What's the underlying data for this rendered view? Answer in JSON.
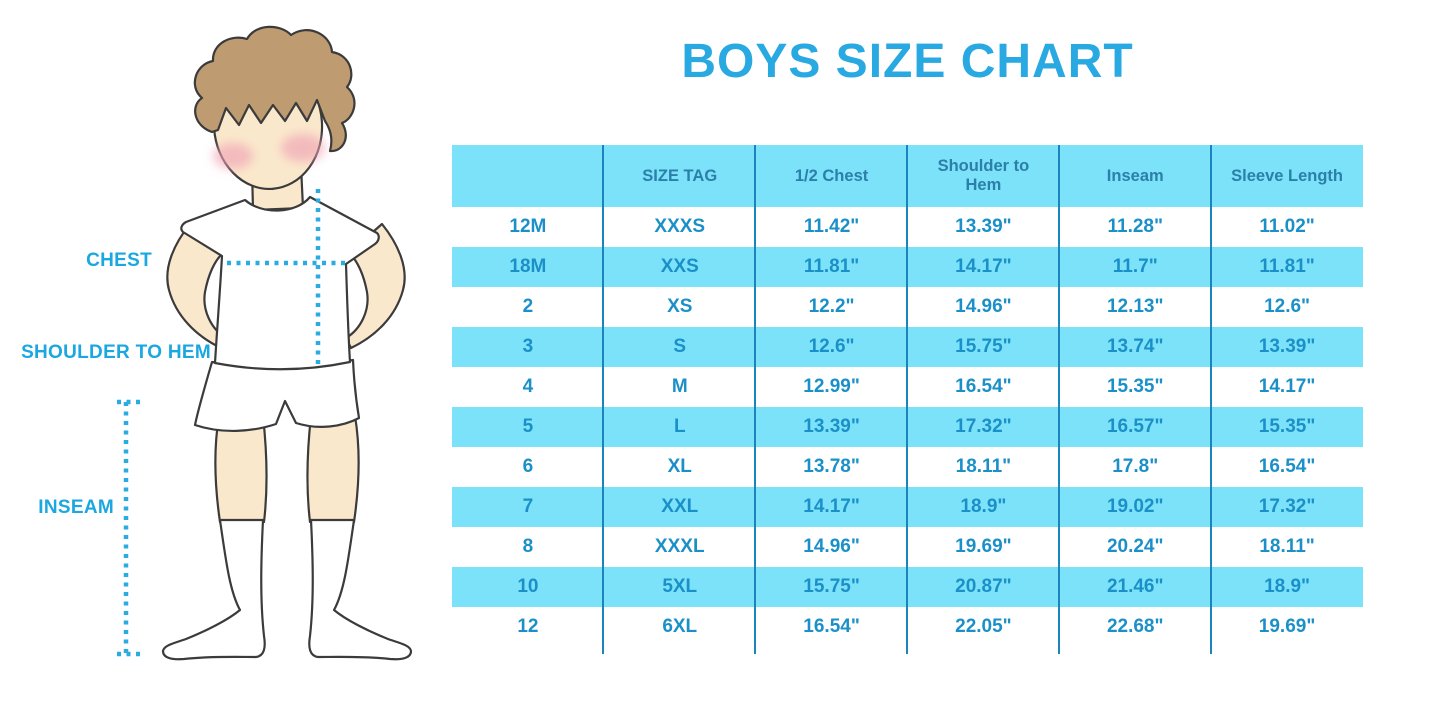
{
  "title": "BOYS SIZE CHART",
  "illustration": {
    "description": "cartoon boy in white t-shirt, shorts and knee socks with dotted measurement lines",
    "labels": {
      "chest": "CHEST",
      "shoulder_to_hem": "SHOULDER TO HEM",
      "inseam": "INSEAM"
    }
  },
  "table": {
    "columns": [
      "",
      "SIZE TAG",
      "1/2 Chest",
      "Shoulder to Hem",
      "Inseam",
      "Sleeve Length"
    ],
    "rows": [
      [
        "12M",
        "XXXS",
        "11.42\"",
        "13.39\"",
        "11.28\"",
        "11.02\""
      ],
      [
        "18M",
        "XXS",
        "11.81\"",
        "14.17\"",
        "11.7\"",
        "11.81\""
      ],
      [
        "2",
        "XS",
        "12.2\"",
        "14.96\"",
        "12.13\"",
        "12.6\""
      ],
      [
        "3",
        "S",
        "12.6\"",
        "15.75\"",
        "13.74\"",
        "13.39\""
      ],
      [
        "4",
        "M",
        "12.99\"",
        "16.54\"",
        "15.35\"",
        "14.17\""
      ],
      [
        "5",
        "L",
        "13.39\"",
        "17.32\"",
        "16.57\"",
        "15.35\""
      ],
      [
        "6",
        "XL",
        "13.78\"",
        "18.11\"",
        "17.8\"",
        "16.54\""
      ],
      [
        "7",
        "XXL",
        "14.17\"",
        "18.9\"",
        "19.02\"",
        "17.32\""
      ],
      [
        "8",
        "XXXL",
        "14.96\"",
        "19.69\"",
        "20.24\"",
        "18.11\""
      ],
      [
        "10",
        "5XL",
        "15.75\"",
        "20.87\"",
        "21.46\"",
        "18.9\""
      ],
      [
        "12",
        "6XL",
        "16.54\"",
        "22.05\"",
        "22.68\"",
        "19.69\""
      ]
    ]
  },
  "colors": {
    "accent_blue": "#29A9E1",
    "row_cyan": "#7BE2F9",
    "header_text": "#2B7FA9",
    "data_text": "#1B90C8",
    "divider": "#1A85BC",
    "skin": "#FAE8CC",
    "hair": "#BE9B71",
    "cheek": "#F0A3B5"
  }
}
